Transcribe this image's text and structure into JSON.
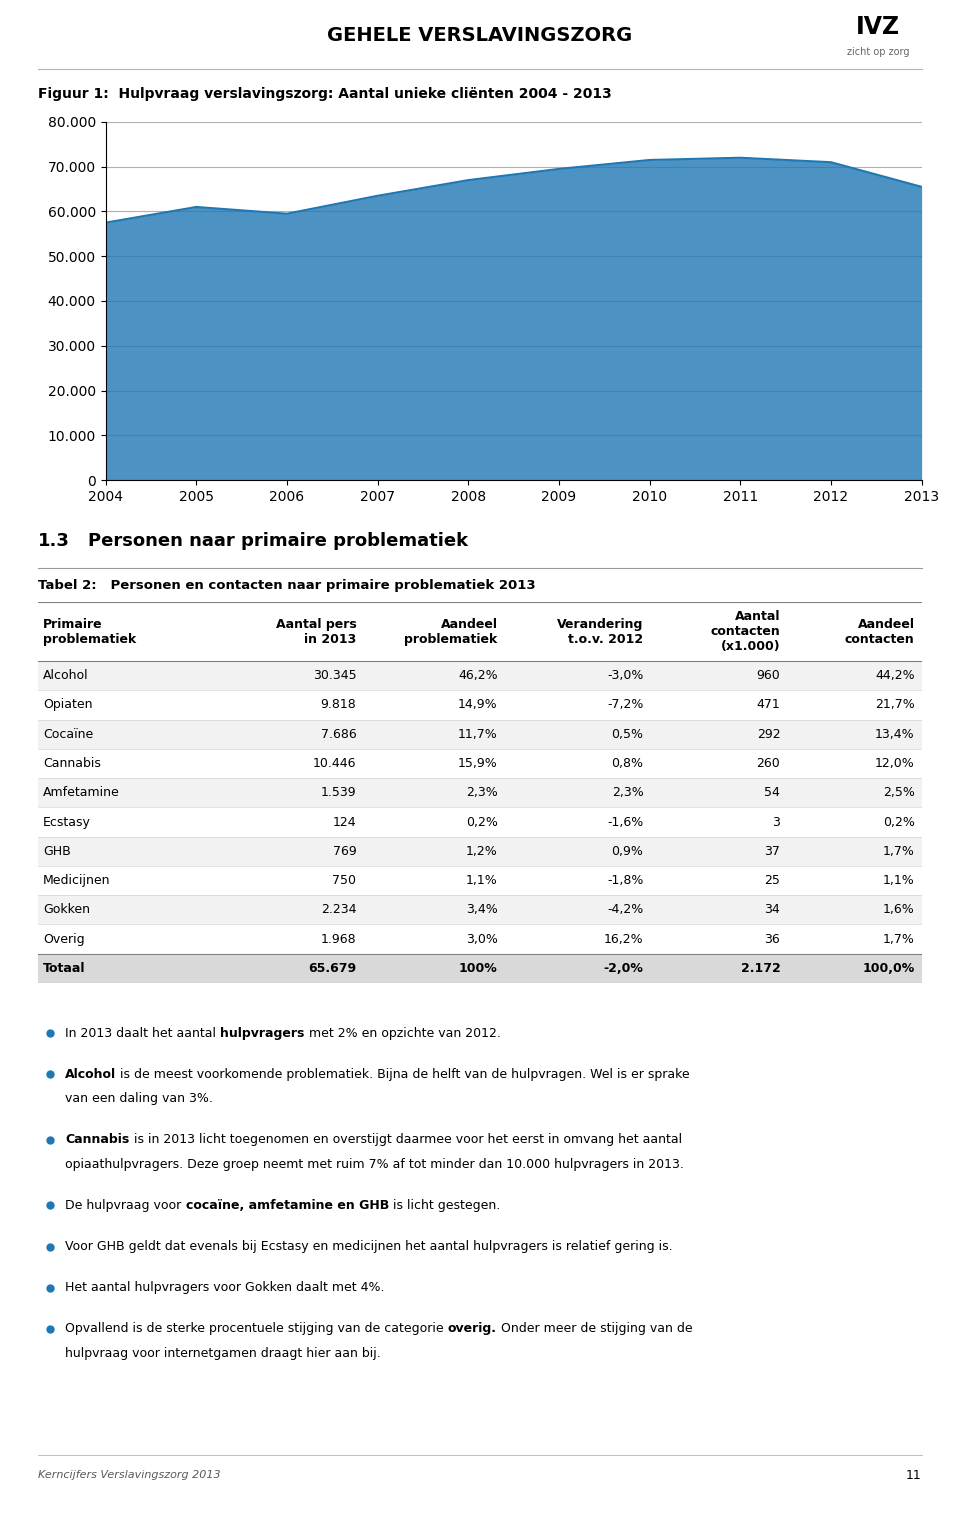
{
  "page_title": "GEHELE VERSLAVINGSZORG",
  "logo_text": "IVZ",
  "logo_subtitle": "zicht op zorg",
  "chart_data": [
    {
      "type": "area",
      "title": "Figuur 1:  Hulpvraag verslavingszorg: Aantal unieke cliënten 2004 - 2013",
      "x": [
        2004,
        2005,
        2006,
        2007,
        2008,
        2009,
        2010,
        2011,
        2012,
        2013
      ],
      "values": [
        57500,
        61000,
        59500,
        63500,
        67000,
        69500,
        71500,
        72000,
        71000,
        65500
      ],
      "xlim": [
        2004,
        2013
      ],
      "xticks": [
        2004,
        2005,
        2006,
        2007,
        2008,
        2009,
        2010,
        2011,
        2012,
        2013
      ],
      "ylim": [
        0,
        80000
      ],
      "yticks": [
        0,
        {
          "value": 10000,
          "label": "10.000"
        },
        {
          "value": 20000,
          "label": "20.000"
        },
        {
          "value": 30000,
          "label": "30.000"
        },
        {
          "value": 40000,
          "label": "40.000"
        },
        {
          "value": 50000,
          "label": "50.000"
        },
        {
          "value": 60000,
          "label": "60.000"
        },
        {
          "value": 70000,
          "label": "70.000"
        },
        {
          "value": 80000,
          "label": "80.000"
        }
      ],
      "grid": true
    },
    {
      "type": "table",
      "title": "Tabel 2:   Personen en contacten naar primaire problematiek 2013",
      "columns": [
        "Primaire\nproblematiek",
        "Aantal pers\nin 2013",
        "Aandeel\nproblematiek",
        "Verandering\nt.o.v. 2012",
        "Aantal\ncontacten\n(x1.000)",
        "Aandeel\ncontacten"
      ],
      "rows": [
        [
          "Alcohol",
          "30.345",
          "46,2%",
          "-3,0%",
          "960",
          "44,2%"
        ],
        [
          "Opiaten",
          "9.818",
          "14,9%",
          "-7,2%",
          "471",
          "21,7%"
        ],
        [
          "Cocaïne",
          "7.686",
          "11,7%",
          "0,5%",
          "292",
          "13,4%"
        ],
        [
          "Cannabis",
          "10.446",
          "15,9%",
          "0,8%",
          "260",
          "12,0%"
        ],
        [
          "Amfetamine",
          "1.539",
          "2,3%",
          "2,3%",
          "54",
          "2,5%"
        ],
        [
          "Ecstasy",
          "124",
          "0,2%",
          "-1,6%",
          "3",
          "0,2%"
        ],
        [
          "GHB",
          "769",
          "1,2%",
          "0,9%",
          "37",
          "1,7%"
        ],
        [
          "Medicijnen",
          "750",
          "1,1%",
          "-1,8%",
          "25",
          "1,1%"
        ],
        [
          "Gokken",
          "2.234",
          "3,4%",
          "-4,2%",
          "34",
          "1,6%"
        ],
        [
          "Overig",
          "1.968",
          "3,0%",
          "16,2%",
          "36",
          "1,7%"
        ],
        [
          "Totaal",
          "65.679",
          "100%",
          "-2,0%",
          "2.172",
          "100,0%"
        ]
      ]
    }
  ],
  "section_number": "1.3",
  "section_title": "Personen naar primaire problematiek",
  "bullet_points": [
    {
      "pre": "In 2013 daalt het aantal ",
      "bold": "hulpvragers",
      "post": " met 2% en opzichte van 2012."
    },
    {
      "bold": "Alcohol",
      "post": " is de meest voorkomende problematiek. Bijna de helft van de hulpvragen. Wel is er sprake",
      "extra": "van een daling van 3%."
    },
    {
      "bold": "Cannabis",
      "post": " is in 2013 licht toegenomen en overstijgt daarmee voor het eerst in omvang het aantal",
      "extra": "opiaathulpvragers. Deze groep neemt met ruim 7% af tot minder dan 10.000 hulpvragers in 2013."
    },
    {
      "pre": "De hulpvraag voor ",
      "bold": "cocaïne, amfetamine en GHB",
      "post": " is licht gestegen."
    },
    {
      "pre": "Voor GHB geldt dat evenals bij Ecstasy en medicijnen het aantal hulpvragers is relatief gering is."
    },
    {
      "pre": "Het aantal hulpvragers voor Gokken daalt met 4%."
    },
    {
      "pre": "Opvallend is de sterke procentuele stijging van de categorie ",
      "bold": "overig.",
      "post": " Onder meer de stijging van de",
      "extra": "hulpvraag voor internetgamen draagt hier aan bij."
    }
  ],
  "footer_left": "Kerncijfers Verslavingszorg 2013",
  "footer_right": "11"
}
